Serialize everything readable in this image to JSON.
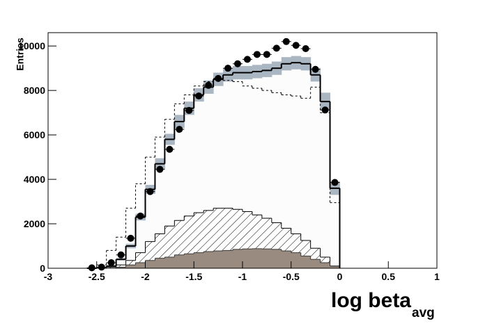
{
  "chart_data": {
    "type": "histogram",
    "ylabel": "Entries",
    "xlabel": "log beta",
    "xlabel_sub": "avg",
    "xlim": [
      -3,
      1
    ],
    "ylim": [
      0,
      10600
    ],
    "xticks": [
      -3,
      -2.5,
      -2,
      -1.5,
      -1,
      -0.5,
      0,
      0.5,
      1
    ],
    "yticks": [
      0,
      2000,
      4000,
      6000,
      8000,
      10000
    ],
    "bins": [
      -2.6,
      -2.5,
      -2.4,
      -2.3,
      -2.2,
      -2.1,
      -2.0,
      -1.9,
      -1.8,
      -1.7,
      -1.6,
      -1.5,
      -1.4,
      -1.3,
      -1.2,
      -1.1,
      -1.0,
      -0.9,
      -0.8,
      -0.7,
      -0.6,
      -0.5,
      -0.4,
      -0.3,
      -0.2,
      -0.1,
      0
    ],
    "series": [
      {
        "fill": "#fcfcfc",
        "line": "solid",
        "line_width": 2,
        "color": "#000000",
        "values": [
          0,
          30,
          100,
          400,
          1000,
          2300,
          3550,
          4700,
          5800,
          6600,
          7200,
          7800,
          8150,
          8500,
          8700,
          8800,
          8800,
          8850,
          8900,
          9000,
          9200,
          9250,
          9200,
          8700,
          7500,
          3600
        ],
        "errors": [
          0,
          0,
          0,
          50,
          100,
          150,
          200,
          250,
          250,
          300,
          300,
          300,
          300,
          300,
          300,
          300,
          300,
          300,
          300,
          300,
          300,
          300,
          300,
          300,
          400,
          300
        ],
        "error_color": "#aab6c2"
      },
      {
        "fill_style": "hatch",
        "line": "solid",
        "line_width": 1,
        "color": "#000000",
        "values": [
          0,
          0,
          50,
          150,
          350,
          700,
          1200,
          1550,
          1900,
          2150,
          2350,
          2500,
          2600,
          2700,
          2700,
          2650,
          2550,
          2400,
          2250,
          2050,
          1800,
          1550,
          1250,
          900,
          500,
          100
        ]
      },
      {
        "fill": "#9a8b80",
        "line": "solid",
        "line_width": 1,
        "color": "#3a3a3a",
        "values": [
          0,
          0,
          0,
          50,
          150,
          250,
          350,
          450,
          500,
          600,
          650,
          700,
          750,
          780,
          800,
          850,
          870,
          880,
          870,
          850,
          780,
          700,
          550,
          400,
          250,
          100
        ]
      },
      {
        "line": "dashed",
        "line_width": 1,
        "color": "#000000",
        "values": [
          0,
          150,
          800,
          1400,
          2700,
          3800,
          5000,
          5900,
          6700,
          7400,
          7800,
          8200,
          8400,
          8500,
          8450,
          8400,
          8200,
          8100,
          8000,
          7900,
          7800,
          7750,
          7650,
          8150,
          7000,
          2950
        ]
      },
      {
        "marker": "circle",
        "color": "#000000",
        "values": [
          20,
          50,
          250,
          600,
          1350,
          2350,
          3450,
          4450,
          5350,
          6250,
          7100,
          7750,
          8230,
          8540,
          9000,
          9200,
          9400,
          9620,
          9620,
          9900,
          10200,
          10030,
          9880,
          8950,
          7120,
          3860
        ]
      }
    ]
  }
}
